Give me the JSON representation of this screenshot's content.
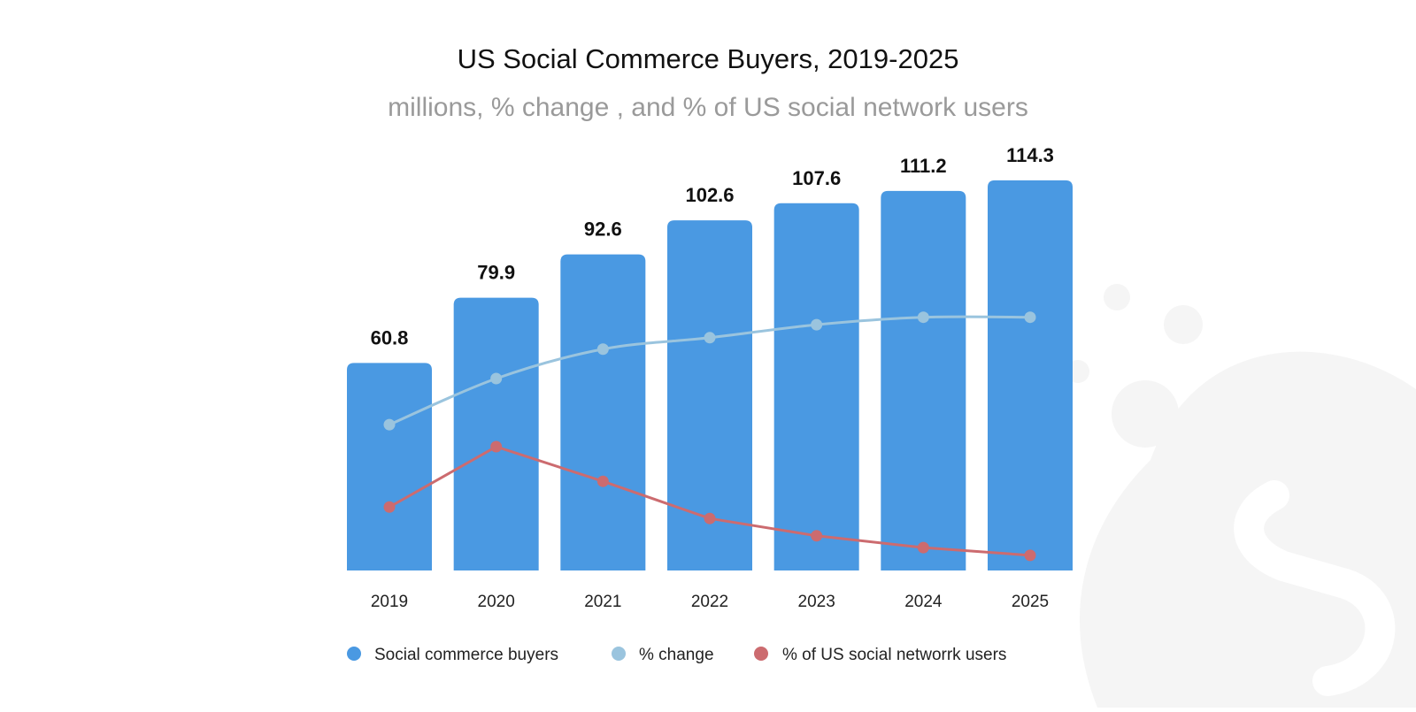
{
  "chart_data": {
    "type": "bar",
    "title": "US Social Commerce Buyers, 2019-2025",
    "subtitle": "millions, % change , and % of US social network users",
    "categories": [
      "2019",
      "2020",
      "2021",
      "2022",
      "2023",
      "2024",
      "2025"
    ],
    "xlabel": "",
    "ylabel": "",
    "ylim": [
      0,
      120
    ],
    "grid": false,
    "legend_position": "bottom",
    "series": [
      {
        "name": "Social commerce buyers",
        "type": "bar",
        "color": "#4a99e2",
        "values": [
          60.8,
          79.9,
          92.6,
          102.6,
          107.6,
          111.2,
          114.3
        ],
        "value_labels": [
          "60.8",
          "79.9",
          "92.6",
          "102.6",
          "107.6",
          "111.2",
          "114.3"
        ]
      },
      {
        "name": "% change",
        "type": "line",
        "color": "#9ac4de",
        "values": [
          47.1,
          62.0,
          71.5,
          75.2,
          79.4,
          81.8,
          81.8
        ]
      },
      {
        "name": "% of US social networrk users",
        "type": "line",
        "color": "#cc6b6f",
        "values": [
          20.5,
          40.0,
          28.8,
          16.8,
          11.2,
          7.4,
          4.9
        ]
      }
    ]
  }
}
